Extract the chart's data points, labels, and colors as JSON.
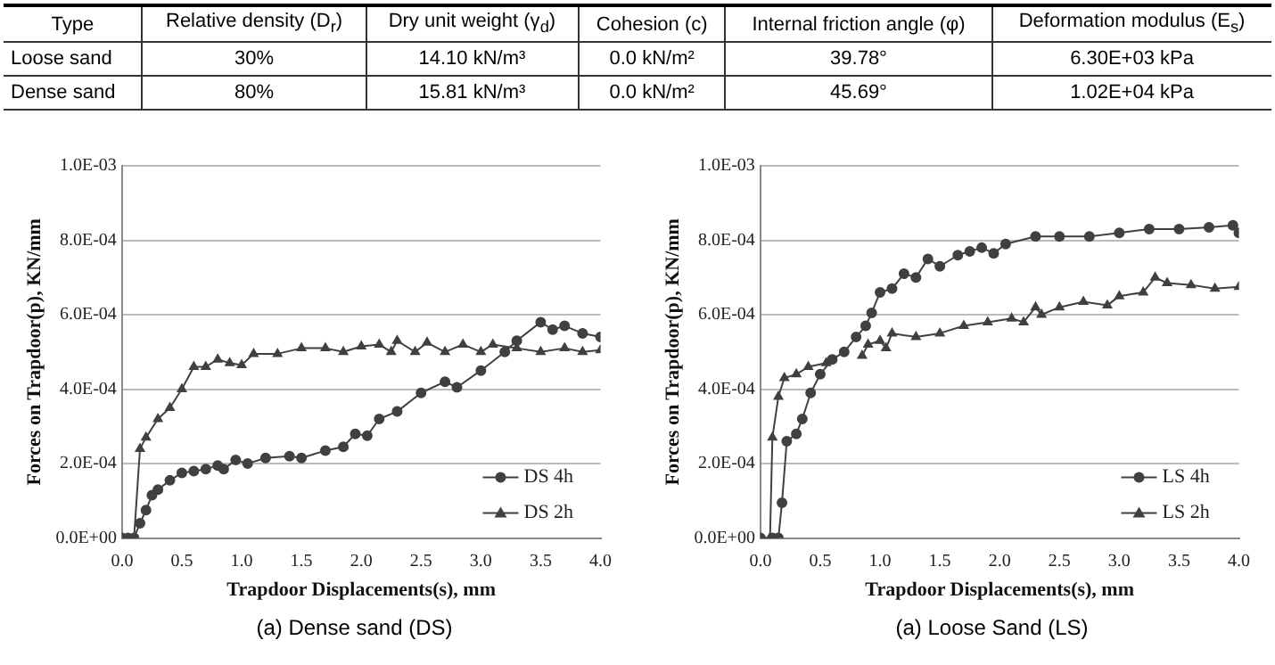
{
  "chart_data": [
    {
      "type": "other",
      "categories": [
        "Type",
        "Relative density (D$_{r}$)",
        "Dry unit weight (γ$_{d}$)",
        "Cohesion (c)",
        "Internal friction angle (φ)",
        "Deformation modulus (E$_{s}$)"
      ],
      "annotations": [
        "Loose sand",
        "30%",
        "14.10 kN/m³",
        "0.0 kN/m²",
        "39.78°",
        "6.30E+03 kPa",
        "Dense sand",
        "80%",
        "15.81 kN/m³",
        "0.0 kN/m²",
        "45.69°",
        "1.02E+04 kPa"
      ]
    },
    {
      "type": "line",
      "xlabel": "Trapdoor Displacements(s), mm",
      "ylabel": "Forces on Trapdoor(p), KN/mm",
      "xlim": [
        0,
        4
      ],
      "xticks": [
        {
          "value": 0,
          "label": "0.0"
        },
        {
          "value": 0.5,
          "label": "0.5"
        },
        {
          "value": 1,
          "label": "1.0"
        },
        {
          "value": 1.5,
          "label": "1.5"
        },
        {
          "value": 2,
          "label": "2.0"
        },
        {
          "value": 2.5,
          "label": "2.5"
        },
        {
          "value": 3,
          "label": "3.0"
        },
        {
          "value": 3.5,
          "label": "3.5"
        },
        {
          "value": 4,
          "label": "4.0"
        }
      ],
      "ylim": [
        0,
        0.001
      ],
      "yticks": [
        {
          "value": 0,
          "label": "0.0E+00"
        },
        {
          "value": 0.0002,
          "label": "2.0E-04"
        },
        {
          "value": 0.0004,
          "label": "4.0E-04"
        },
        {
          "value": 0.0006,
          "label": "6.0E-04"
        },
        {
          "value": 0.0008,
          "label": "8.0E-04"
        },
        {
          "value": 0.001,
          "label": "1.0E-03"
        }
      ],
      "grid": "y",
      "legend": "bottom right",
      "annotations": [
        "(a)  Dense sand (DS)"
      ],
      "series": [
        {
          "name": "DS 4h",
          "color": "#404040",
          "marker": "circle",
          "x": [
            0,
            0.05,
            0.1,
            0.15,
            0.2,
            0.25,
            0.3,
            0.4,
            0.5,
            0.6,
            0.7,
            0.8,
            0.85,
            0.95,
            1.05,
            1.2,
            1.4,
            1.5,
            1.7,
            1.85,
            1.95,
            2.05,
            2.15,
            2.3,
            2.5,
            2.7,
            2.8,
            3.0,
            3.2,
            3.3,
            3.5,
            3.6,
            3.7,
            3.85,
            4.0
          ],
          "values": [
            0,
            0,
            0,
            4e-05,
            7.5e-05,
            0.000115,
            0.00013,
            0.000155,
            0.000175,
            0.00018,
            0.000185,
            0.000195,
            0.000185,
            0.00021,
            0.0002,
            0.000215,
            0.00022,
            0.000215,
            0.000235,
            0.000245,
            0.00028,
            0.000275,
            0.00032,
            0.00034,
            0.00039,
            0.00042,
            0.000405,
            0.00045,
            0.0005,
            0.00053,
            0.00058,
            0.00056,
            0.00057,
            0.00055,
            0.00054
          ]
        },
        {
          "name": "DS 2h",
          "color": "#404040",
          "marker": "triangle",
          "x": [
            0,
            0.1,
            0.15,
            0.2,
            0.3,
            0.4,
            0.5,
            0.6,
            0.7,
            0.8,
            0.9,
            1.0,
            1.1,
            1.3,
            1.5,
            1.7,
            1.85,
            2.0,
            2.15,
            2.25,
            2.3,
            2.45,
            2.55,
            2.7,
            2.85,
            3.0,
            3.1,
            3.3,
            3.5,
            3.7,
            3.85,
            4.0
          ],
          "values": [
            0,
            0,
            0.00024,
            0.00027,
            0.00032,
            0.00035,
            0.0004,
            0.00046,
            0.00046,
            0.00048,
            0.00047,
            0.000465,
            0.000495,
            0.000495,
            0.00051,
            0.00051,
            0.0005,
            0.000515,
            0.00052,
            0.0005,
            0.00053,
            0.0005,
            0.000525,
            0.0005,
            0.00052,
            0.0005,
            0.00052,
            0.00051,
            0.0005,
            0.00051,
            0.0005,
            0.000505
          ]
        }
      ]
    },
    {
      "type": "line",
      "xlabel": "Trapdoor Displacements(s), mm",
      "ylabel": "Forces on Trapdoor(p), KN/mm",
      "xlim": [
        0,
        4
      ],
      "xticks": [
        {
          "value": 0,
          "label": "0.0"
        },
        {
          "value": 0.5,
          "label": "0.5"
        },
        {
          "value": 1,
          "label": "1.0"
        },
        {
          "value": 1.5,
          "label": "1.5"
        },
        {
          "value": 2,
          "label": "2.0"
        },
        {
          "value": 2.5,
          "label": "2.5"
        },
        {
          "value": 3,
          "label": "3.0"
        },
        {
          "value": 3.5,
          "label": "3.5"
        },
        {
          "value": 4,
          "label": "4.0"
        }
      ],
      "ylim": [
        0,
        0.001
      ],
      "yticks": [
        {
          "value": 0,
          "label": "0.0E+00"
        },
        {
          "value": 0.0002,
          "label": "2.0E-04"
        },
        {
          "value": 0.0004,
          "label": "4.0E-04"
        },
        {
          "value": 0.0006,
          "label": "6.0E-04"
        },
        {
          "value": 0.0008,
          "label": "8.0E-04"
        },
        {
          "value": 0.001,
          "label": "1.0E-03"
        }
      ],
      "grid": "y",
      "legend": "bottom right",
      "annotations": [
        "(a)  Loose Sand (LS)"
      ],
      "series": [
        {
          "name": "LS 4h",
          "color": "#404040",
          "marker": "circle",
          "x": [
            0,
            0.1,
            0.15,
            0.18,
            0.22,
            0.3,
            0.35,
            0.42,
            0.5,
            0.6,
            0.7,
            0.8,
            0.88,
            0.93,
            1.0,
            1.1,
            1.2,
            1.3,
            1.4,
            1.5,
            1.65,
            1.75,
            1.85,
            1.95,
            2.05,
            2.3,
            2.5,
            2.75,
            3.0,
            3.25,
            3.5,
            3.75,
            3.95,
            4.0
          ],
          "values": [
            0,
            0,
            0,
            9.5e-05,
            0.00026,
            0.00028,
            0.00032,
            0.00039,
            0.00044,
            0.00048,
            0.0005,
            0.00054,
            0.00057,
            0.000605,
            0.00066,
            0.00067,
            0.00071,
            0.0007,
            0.00075,
            0.00073,
            0.00076,
            0.00077,
            0.00078,
            0.000765,
            0.00079,
            0.00081,
            0.00081,
            0.00081,
            0.00082,
            0.00083,
            0.00083,
            0.000835,
            0.00084,
            0.00082
          ]
        },
        {
          "name": "LS 2h",
          "color": "#404040",
          "marker": "triangle",
          "x": [
            0,
            0.08,
            0.1,
            0.15,
            0.2,
            0.3,
            0.4,
            0.55,
            0.7,
            0.85,
            0.9,
            1.0,
            1.05,
            1.1,
            1.3,
            1.5,
            1.7,
            1.9,
            2.1,
            2.2,
            2.3,
            2.35,
            2.5,
            2.7,
            2.9,
            3.0,
            3.2,
            3.3,
            3.4,
            3.6,
            3.8,
            4.0
          ],
          "values": [
            0,
            0,
            0.00027,
            0.00038,
            0.00043,
            0.00044,
            0.00046,
            0.00047,
            null,
            0.00049,
            0.00052,
            0.00053,
            0.00051,
            0.00055,
            0.00054,
            0.00055,
            0.00057,
            0.00058,
            0.00059,
            0.00058,
            0.00062,
            0.0006,
            0.00062,
            0.000635,
            0.000625,
            0.00065,
            0.00066,
            0.0007,
            0.000685,
            0.00068,
            0.00067,
            0.000675
          ]
        }
      ]
    }
  ]
}
